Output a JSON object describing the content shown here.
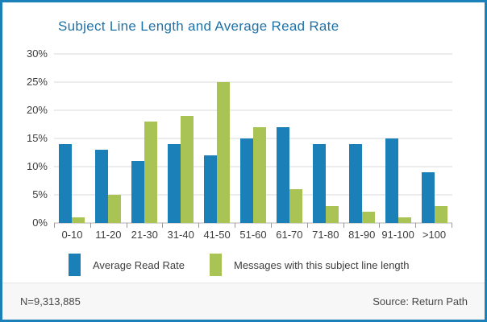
{
  "title": "Subject Line Length and Average Read Rate",
  "footer": {
    "n_label": "N=9,313,885",
    "source_label": "Source: Return Path"
  },
  "legend": [
    {
      "label": "Average Read Rate",
      "color": "#1B80B8"
    },
    {
      "label": "Messages with this subject line length",
      "color": "#A9C355"
    }
  ],
  "colors": {
    "frame_border": "#1B80B8",
    "title": "#1E72A7",
    "gridline": "#ECECEC",
    "axis_text": "#3E3E40",
    "footer_bg": "#F7F7F7"
  },
  "chart_data": {
    "type": "bar",
    "title": "Subject Line Length and Average Read Rate",
    "categories": [
      "0-10",
      "11-20",
      "21-30",
      "31-40",
      "41-50",
      "51-60",
      "61-70",
      "71-80",
      "81-90",
      "91-100",
      ">100"
    ],
    "series": [
      {
        "name": "Average Read Rate",
        "color": "#1B80B8",
        "values": [
          14,
          13,
          11,
          14,
          12,
          15,
          17,
          14,
          14,
          15,
          9
        ]
      },
      {
        "name": "Messages with this subject line length",
        "color": "#A9C355",
        "values": [
          1,
          5,
          18,
          19,
          25,
          17,
          6,
          3,
          2,
          1,
          3
        ]
      }
    ],
    "xlabel": "",
    "ylabel": "",
    "ylim": [
      0,
      30
    ],
    "yticks": [
      0,
      5,
      10,
      15,
      20,
      25,
      30
    ],
    "ytick_format": "percent",
    "grid": true,
    "legend_position": "bottom"
  }
}
